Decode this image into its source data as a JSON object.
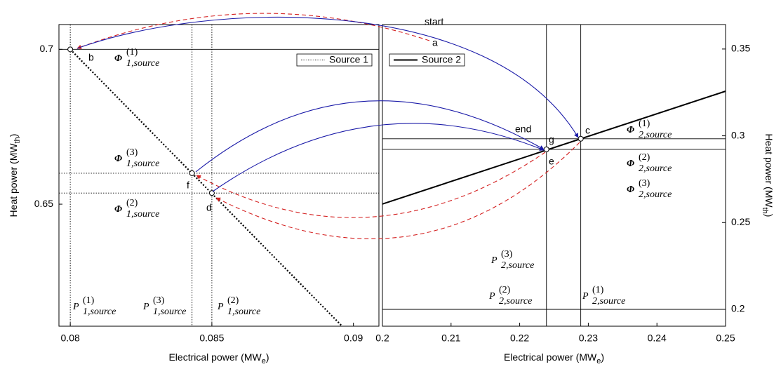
{
  "chart_data": [
    {
      "type": "line",
      "xlabel": {
        "text": "Electrical power (MW",
        "sub": "e",
        "end": ")"
      },
      "ylabel": {
        "text": "Heat power (MW",
        "sub": "th",
        "end": ")"
      },
      "xlim": [
        0.0796,
        0.0909
      ],
      "xticks": [
        0.08,
        0.085,
        0.09
      ],
      "ylim": [
        0.6106,
        0.708
      ],
      "yticks": [
        0.7,
        0.65
      ],
      "y_axis_side": "left",
      "legend": "top-right",
      "series": [
        {
          "name": "Source 1",
          "color": "#000000",
          "style": "dotted",
          "x": [
            0.08,
            0.0896
          ],
          "values": [
            0.7,
            0.6106
          ]
        }
      ],
      "reference_lines": {
        "y": [
          0.7,
          0.66,
          0.6536
        ],
        "y_styles": [
          "solid",
          "dotted",
          "dotted"
        ],
        "x": [
          0.08,
          0.0843,
          0.085
        ],
        "x_styles": [
          "dotted",
          "dotted",
          "dotted"
        ]
      },
      "points": {
        "x": [
          0.08,
          0.0843,
          0.085
        ],
        "y": [
          0.7,
          0.66,
          0.6536
        ],
        "labels": [
          "b",
          "f",
          "d"
        ]
      },
      "text_labels": [
        "start",
        "a"
      ],
      "math_labels": [
        {
          "symbol": "Φ",
          "sup": "(1)",
          "sub": "1,source"
        },
        {
          "symbol": "Φ",
          "sup": "(3)",
          "sub": "1,source"
        },
        {
          "symbol": "Φ",
          "sup": "(2)",
          "sub": "1,source"
        },
        {
          "symbol": "P",
          "sup": "(1)",
          "sub": "1,source"
        },
        {
          "symbol": "P",
          "sup": "(3)",
          "sub": "1,source"
        },
        {
          "symbol": "P",
          "sup": "(2)",
          "sub": "1,source"
        }
      ]
    },
    {
      "type": "line",
      "xlabel": {
        "text": "Electrical power (MW",
        "sub": "e",
        "end": ")"
      },
      "ylabel": {
        "text": "Heat power (MW",
        "sub": "th",
        "end": ")"
      },
      "xlim": [
        0.2,
        0.25
      ],
      "xticks": [
        0.2,
        0.21,
        0.22,
        0.23,
        0.24,
        0.25
      ],
      "ylim": [
        0.1903,
        0.3641
      ],
      "yticks": [
        0.35,
        0.3,
        0.25,
        0.2
      ],
      "y_axis_side": "right",
      "legend": "top-left",
      "series": [
        {
          "name": "Source 2",
          "color": "#000000",
          "style": "solid",
          "x": [
            0.2,
            0.25
          ],
          "values": [
            0.2607,
            0.3257
          ]
        }
      ],
      "reference_lines": {
        "y": [
          0.2983,
          0.2922,
          0.2
        ],
        "y_styles": [
          "solid",
          "solid",
          "solid"
        ],
        "x": [
          0.2239,
          0.2289
        ],
        "x_styles": [
          "solid",
          "solid"
        ]
      },
      "points": {
        "x": [
          0.2289,
          0.2239
        ],
        "y": [
          0.2983,
          0.2922
        ],
        "labels": [
          "c",
          "g"
        ]
      },
      "text_labels": [
        "end",
        "e"
      ],
      "math_labels": [
        {
          "symbol": "Φ",
          "sup": "(1)",
          "sub": "2,source"
        },
        {
          "symbol": "Φ",
          "sup": "(2)",
          "sub": "2,source"
        },
        {
          "symbol": "Φ",
          "sup": "(3)",
          "sub": "2,source"
        },
        {
          "symbol": "P",
          "sup": "(3)",
          "sub": "2,source"
        },
        {
          "symbol": "P",
          "sup": "(2)",
          "sub": "2,source"
        },
        {
          "symbol": "P",
          "sup": "(1)",
          "sub": "2,source"
        }
      ]
    }
  ]
}
